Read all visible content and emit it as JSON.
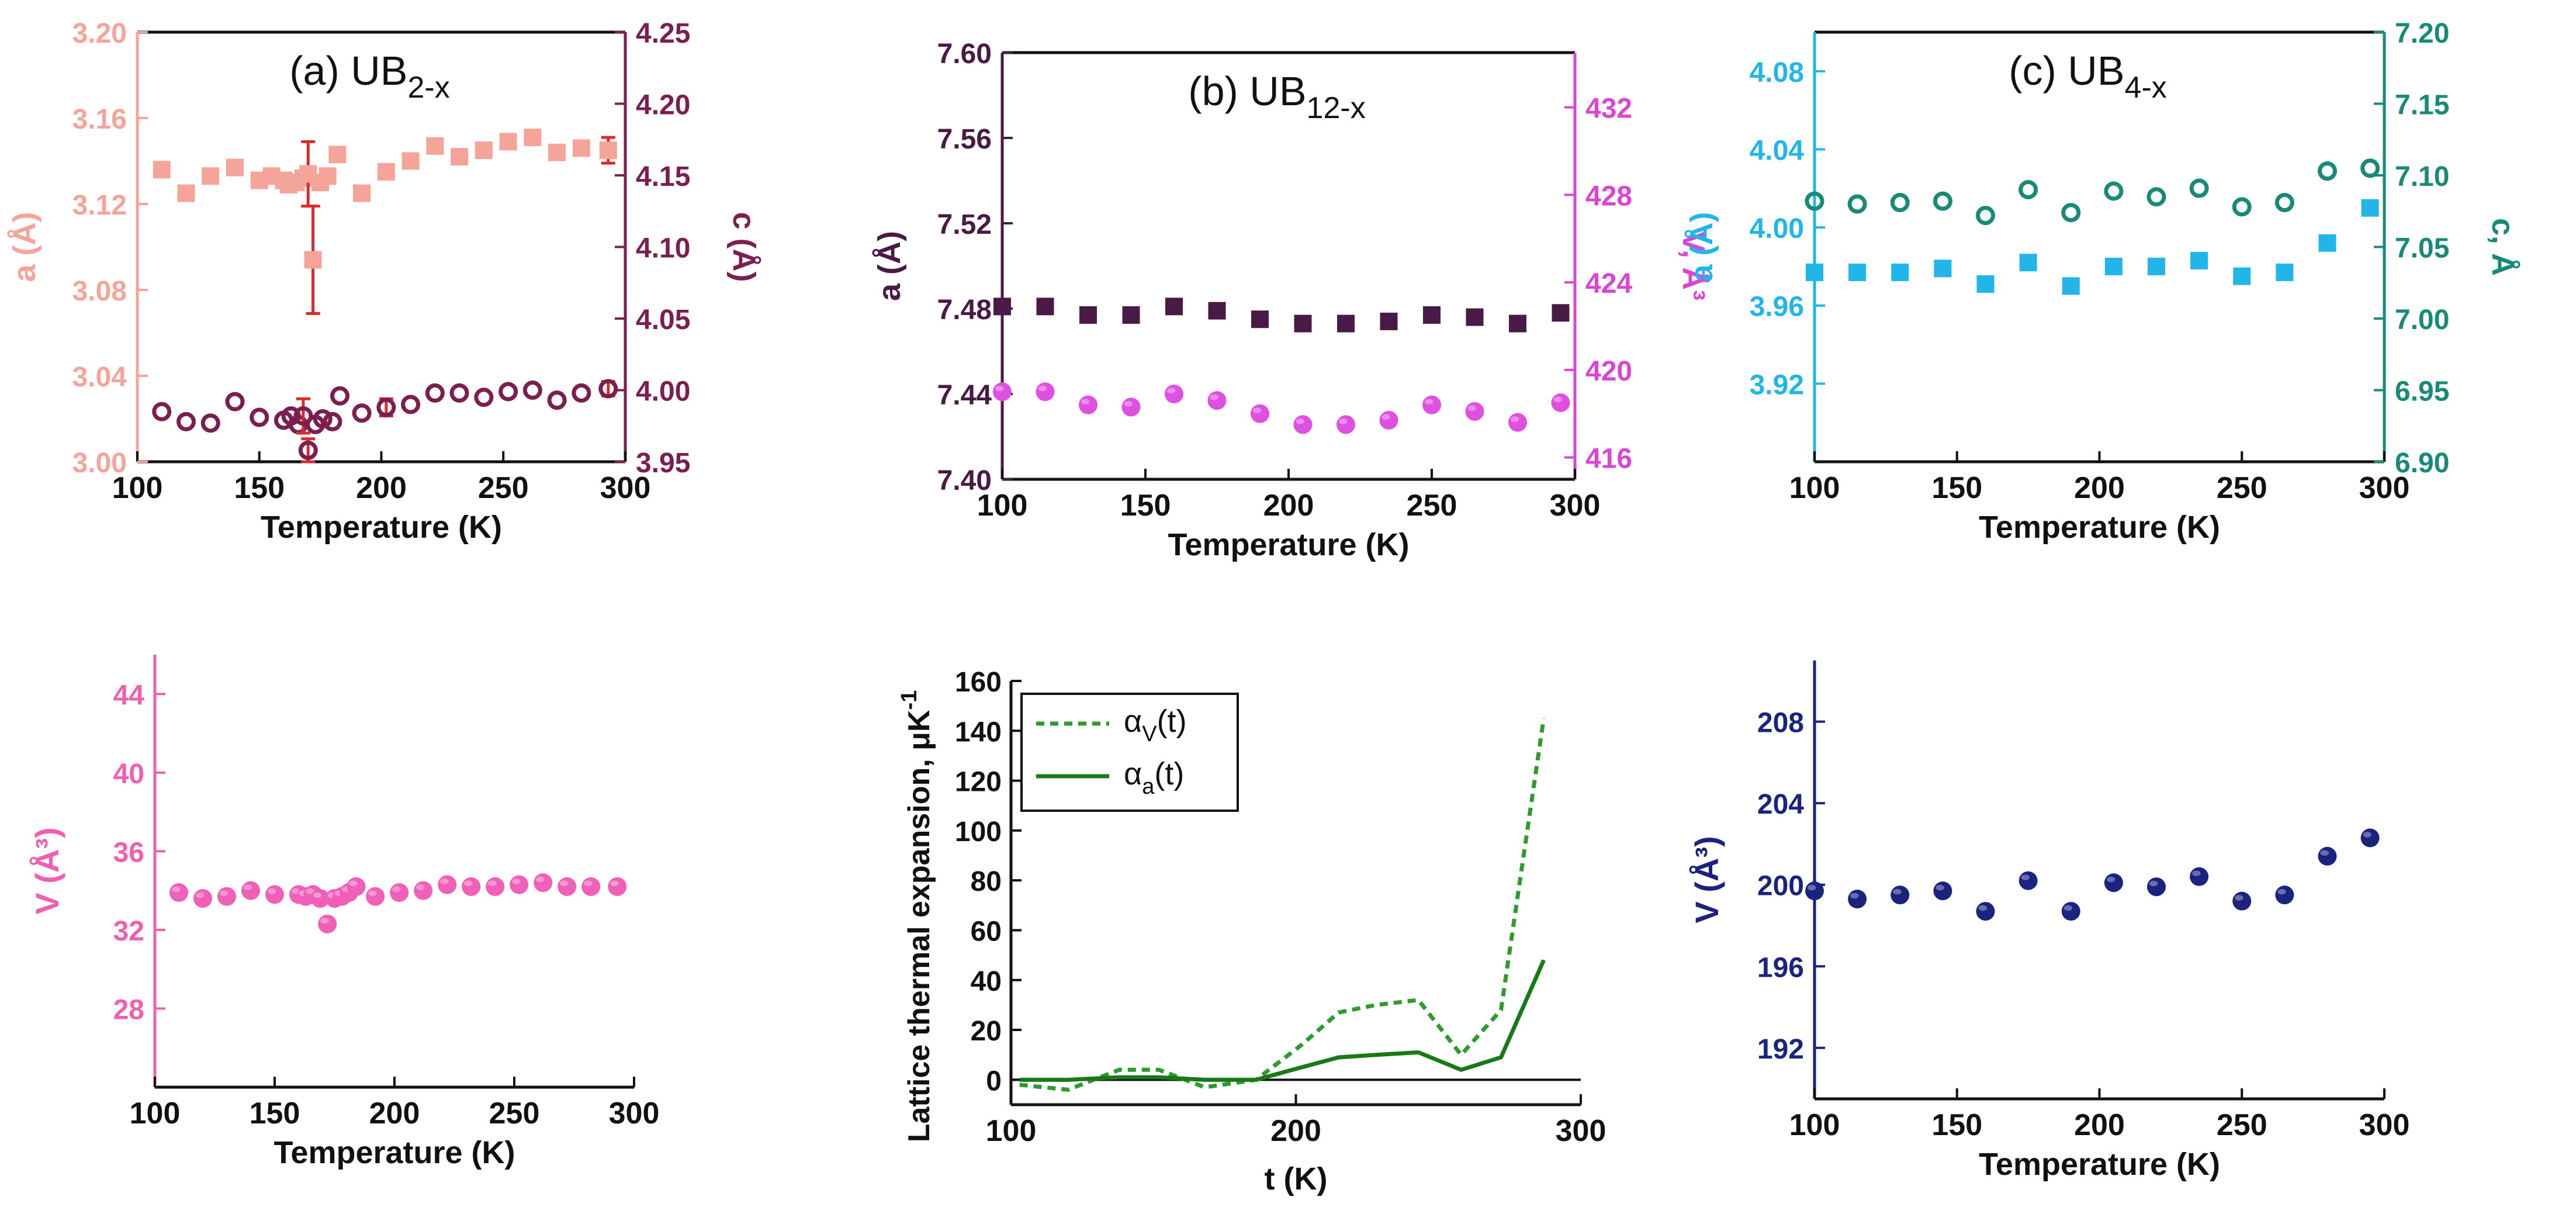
{
  "chart_data": [
    {
      "id": "a_top",
      "type": "scatter",
      "title": "(a) UB",
      "title_sub": "2-x",
      "xlabel": "Temperature (K)",
      "xlim": [
        100,
        300
      ],
      "xticks": [
        100,
        150,
        200,
        250,
        300
      ],
      "left_axis": {
        "label": "a (Å)",
        "lim": [
          3.0,
          3.2
        ],
        "ticks": [
          3.0,
          3.04,
          3.08,
          3.12,
          3.16,
          3.2
        ],
        "tick_labels": [
          "3.00",
          "3.04",
          "3.08",
          "3.12",
          "3.16",
          "3.20"
        ],
        "color": "#f5a49a"
      },
      "right_axis": {
        "label": "c (Å)",
        "lim": [
          3.95,
          4.25
        ],
        "ticks": [
          3.95,
          4.0,
          4.05,
          4.1,
          4.15,
          4.2,
          4.25
        ],
        "tick_labels": [
          "3.95",
          "4.00",
          "4.05",
          "4.10",
          "4.15",
          "4.20",
          "4.25"
        ],
        "color": "#7a1f4f"
      },
      "series": [
        {
          "name": "a",
          "axis": "left",
          "marker": "square",
          "color": "#f5a49a",
          "x": [
            110,
            120,
            130,
            140,
            150,
            155,
            160,
            162,
            165,
            168,
            170,
            172,
            175,
            178,
            182,
            192,
            202,
            212,
            222,
            232,
            242,
            252,
            262,
            272,
            282,
            293
          ],
          "y": [
            3.136,
            3.125,
            3.133,
            3.137,
            3.131,
            3.133,
            3.131,
            3.129,
            3.13,
            3.132,
            3.134,
            3.094,
            3.13,
            3.133,
            3.143,
            3.125,
            3.135,
            3.14,
            3.147,
            3.142,
            3.145,
            3.149,
            3.151,
            3.144,
            3.146,
            3.145
          ],
          "err": [
            0,
            0,
            0,
            0,
            0,
            0,
            0,
            0,
            0,
            0,
            0.015,
            0.025,
            0,
            0,
            0,
            0,
            0,
            0,
            0,
            0,
            0,
            0,
            0,
            0,
            0,
            0.006
          ]
        },
        {
          "name": "c",
          "axis": "right",
          "marker": "open-circle",
          "color": "#7a1f4f",
          "x": [
            110,
            120,
            130,
            140,
            150,
            160,
            163,
            166,
            168,
            170,
            173,
            176,
            180,
            183,
            192,
            202,
            212,
            222,
            232,
            242,
            252,
            262,
            272,
            282,
            293
          ],
          "y": [
            3.985,
            3.978,
            3.977,
            3.992,
            3.981,
            3.979,
            3.982,
            3.976,
            3.982,
            3.958,
            3.976,
            3.98,
            3.978,
            3.996,
            3.984,
            3.988,
            3.99,
            3.998,
            3.998,
            3.995,
            3.999,
            4.0,
            3.993,
            3.998,
            4.001
          ],
          "err": [
            0,
            0,
            0,
            0,
            0,
            0,
            0,
            0,
            0.012,
            0.008,
            0,
            0,
            0,
            0,
            0,
            0.006,
            0,
            0,
            0,
            0,
            0,
            0,
            0,
            0,
            0.005
          ]
        }
      ]
    },
    {
      "id": "b_top",
      "type": "scatter",
      "title": "(b) UB",
      "title_sub": "12-x",
      "xlabel": "Temperature (K)",
      "xlim": [
        100,
        300
      ],
      "xticks": [
        100,
        150,
        200,
        250,
        300
      ],
      "left_axis": {
        "label": "a (Å)",
        "lim": [
          7.4,
          7.6
        ],
        "ticks": [
          7.4,
          7.44,
          7.48,
          7.52,
          7.56,
          7.6
        ],
        "tick_labels": [
          "7.40",
          "7.44",
          "7.48",
          "7.52",
          "7.56",
          "7.60"
        ],
        "color": "#4a1a46"
      },
      "right_axis": {
        "label": "V, Å³",
        "lim": [
          415.0,
          434.5
        ],
        "ticks": [
          416,
          420,
          424,
          428,
          432
        ],
        "tick_labels": [
          "416",
          "420",
          "424",
          "428",
          "432"
        ],
        "color": "#d946d1"
      },
      "series": [
        {
          "name": "a",
          "axis": "left",
          "marker": "square",
          "color": "#4a1a46",
          "x": [
            100,
            115,
            130,
            145,
            160,
            175,
            190,
            205,
            220,
            235,
            250,
            265,
            280,
            295
          ],
          "y": [
            7.481,
            7.481,
            7.477,
            7.477,
            7.481,
            7.479,
            7.475,
            7.473,
            7.473,
            7.474,
            7.477,
            7.476,
            7.473,
            7.478
          ],
          "err": []
        },
        {
          "name": "V",
          "axis": "right",
          "marker": "sphere",
          "color": "#e050e0",
          "x": [
            100,
            115,
            130,
            145,
            160,
            175,
            190,
            205,
            220,
            235,
            250,
            265,
            280,
            295
          ],
          "y": [
            419.0,
            419.0,
            418.4,
            418.3,
            418.9,
            418.6,
            418.0,
            417.5,
            417.5,
            417.7,
            418.4,
            418.1,
            417.6,
            418.5
          ],
          "err": []
        }
      ]
    },
    {
      "id": "c_top",
      "type": "scatter",
      "title": "(c) UB",
      "title_sub": "4-x",
      "xlabel": "Temperature (K)",
      "xlim": [
        100,
        300
      ],
      "xticks": [
        100,
        150,
        200,
        250,
        300
      ],
      "left_axis": {
        "label": "a (Å)",
        "lim": [
          3.88,
          4.1
        ],
        "ticks": [
          3.92,
          3.96,
          4.0,
          4.04,
          4.08
        ],
        "tick_labels": [
          "3.92",
          "3.96",
          "4.00",
          "4.04",
          "4.08"
        ],
        "color": "#22b6e8"
      },
      "right_axis": {
        "label": "c, Å",
        "lim": [
          6.9,
          7.2
        ],
        "ticks": [
          6.9,
          6.95,
          7.0,
          7.05,
          7.1,
          7.15,
          7.2
        ],
        "tick_labels": [
          "6.90",
          "6.95",
          "7.00",
          "7.05",
          "7.10",
          "7.15",
          "7.20"
        ],
        "color": "#1a8a78"
      },
      "series": [
        {
          "name": "a",
          "axis": "left",
          "marker": "square",
          "color": "#22b6e8",
          "x": [
            100,
            115,
            130,
            145,
            160,
            175,
            190,
            205,
            220,
            235,
            250,
            265,
            280,
            295
          ],
          "y": [
            3.977,
            3.977,
            3.977,
            3.979,
            3.971,
            3.982,
            3.97,
            3.98,
            3.98,
            3.983,
            3.975,
            3.977,
            3.992,
            4.01
          ],
          "err": []
        },
        {
          "name": "c",
          "axis": "right",
          "marker": "open-circle",
          "color": "#1a8a78",
          "x": [
            100,
            115,
            130,
            145,
            160,
            175,
            190,
            205,
            220,
            235,
            250,
            265,
            280,
            295
          ],
          "y": [
            7.082,
            7.08,
            7.081,
            7.082,
            7.072,
            7.09,
            7.074,
            7.089,
            7.085,
            7.091,
            7.078,
            7.081,
            7.103,
            7.105
          ],
          "err": []
        }
      ]
    },
    {
      "id": "a_bottom",
      "type": "scatter",
      "xlabel": "Temperature (K)",
      "xlim": [
        100,
        300
      ],
      "xticks": [
        100,
        150,
        200,
        250,
        300
      ],
      "left_axis": {
        "label": "V (Å³)",
        "lim": [
          24,
          46
        ],
        "ticks": [
          28,
          32,
          36,
          40,
          44
        ],
        "tick_labels": [
          "28",
          "32",
          "36",
          "40",
          "44"
        ],
        "color": "#f05fb0"
      },
      "series": [
        {
          "name": "V",
          "axis": "left",
          "marker": "sphere",
          "color": "#f060b8",
          "x": [
            110,
            120,
            130,
            140,
            150,
            160,
            163,
            166,
            169,
            172,
            175,
            178,
            181,
            184,
            192,
            202,
            212,
            222,
            232,
            242,
            252,
            262,
            272,
            282,
            293
          ],
          "y": [
            33.9,
            33.6,
            33.7,
            34.0,
            33.8,
            33.8,
            33.7,
            33.8,
            33.6,
            32.3,
            33.6,
            33.7,
            33.9,
            34.2,
            33.7,
            33.9,
            34.0,
            34.3,
            34.2,
            34.2,
            34.3,
            34.4,
            34.2,
            34.2,
            34.2
          ],
          "err": []
        }
      ]
    },
    {
      "id": "thermal_expansion",
      "type": "line",
      "xlabel": "t (K)",
      "ylabel": "Lattice thermal expansion, μK",
      "ylabel_sup": "-1",
      "xlim": [
        100,
        300
      ],
      "xticks": [
        100,
        200,
        300
      ],
      "ylim": [
        -10,
        160
      ],
      "yticks": [
        0,
        20,
        40,
        60,
        80,
        100,
        120,
        140,
        160
      ],
      "legend": "top-left",
      "series": [
        {
          "name": "αV(t)",
          "label_main": "α",
          "label_sub": "V",
          "label_tail": "(t)",
          "style": "dotted",
          "color": "#2e9b2e",
          "x": [
            103,
            120,
            138,
            152,
            168,
            186,
            202,
            215,
            228,
            243,
            258,
            272,
            287
          ],
          "y": [
            -2,
            -4,
            4,
            4,
            -3,
            0,
            14,
            27,
            30,
            32,
            10,
            28,
            145
          ]
        },
        {
          "name": "αa(t)",
          "label_main": "α",
          "label_sub": "a",
          "label_tail": "(t)",
          "style": "solid",
          "color": "#177a17",
          "x": [
            103,
            120,
            138,
            152,
            168,
            186,
            202,
            215,
            228,
            243,
            258,
            272,
            287
          ],
          "y": [
            0,
            0,
            1,
            1,
            0,
            0,
            5,
            9,
            10,
            11,
            4,
            9,
            48
          ]
        }
      ]
    },
    {
      "id": "c_bottom",
      "type": "scatter",
      "xlabel": "Temperature (K)",
      "xlim": [
        100,
        300
      ],
      "xticks": [
        100,
        150,
        200,
        250,
        300
      ],
      "left_axis": {
        "label": "V (Å³)",
        "lim": [
          189.5,
          211
        ],
        "ticks": [
          192,
          196,
          200,
          204,
          208
        ],
        "tick_labels": [
          "192",
          "196",
          "200",
          "204",
          "208"
        ],
        "color": "#1a237e"
      },
      "series": [
        {
          "name": "V",
          "axis": "left",
          "marker": "sphere",
          "color": "#1a237e",
          "x": [
            100,
            115,
            130,
            145,
            160,
            175,
            190,
            205,
            220,
            235,
            250,
            265,
            280,
            295
          ],
          "y": [
            199.7,
            199.3,
            199.5,
            199.7,
            198.7,
            200.2,
            198.7,
            200.1,
            199.9,
            200.4,
            199.2,
            199.5,
            201.4,
            202.3
          ],
          "err": []
        }
      ]
    }
  ]
}
